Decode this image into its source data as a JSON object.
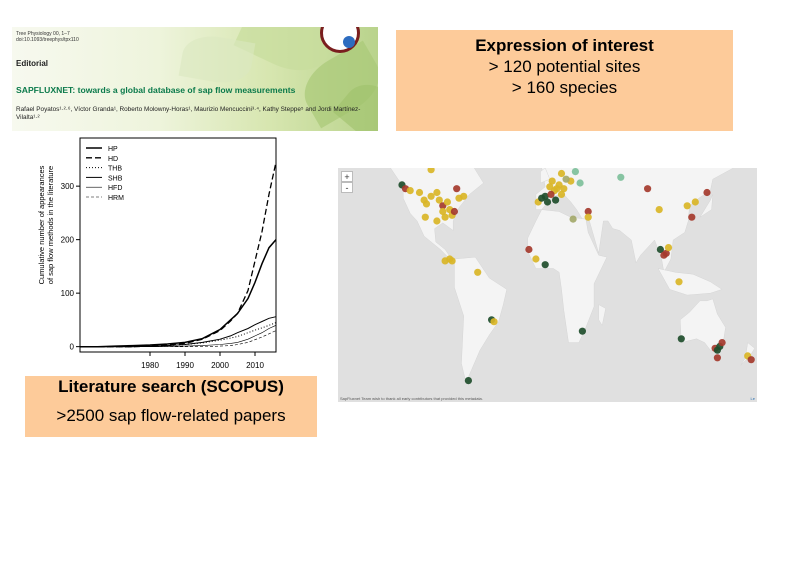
{
  "journal_header": {
    "meta_line1": "Tree Physiology 00, 1–7",
    "meta_line2": "doi:10.1093/treephys/tpx110",
    "kind": "Editorial",
    "title": "SAPFLUXNET: towards a global database of sap flow measurements",
    "authors": "Rafael Poyatos¹·²·⁶, Víctor Granda¹, Roberto Molowny-Horas¹, Maurizio Mencuccini³·⁴, Kathy Steppe⁵ and Jordi Martínez-Vilalta¹·²"
  },
  "expression_box": {
    "heading": "Expression of interest",
    "line1": "> 120 potential sites",
    "line2": "> 160 species"
  },
  "literature_box": {
    "heading": "Literature search (SCOPUS)",
    "line1": ">2500 sap flow-related papers"
  },
  "map": {
    "zoom_in": "+",
    "zoom_out": "-",
    "credit": "SapFluxnet Team wish to thank all early contributors that provided this metadata.",
    "leaflet_label": "Le",
    "colors": {
      "ocean": "#e0e0e0",
      "land": "#f4f4f4",
      "yellow": "#d9b526",
      "red": "#a43a2c",
      "dark_green": "#1e4d2b",
      "mint": "#7dbf9a",
      "olive": "#a3a86a"
    },
    "sites": [
      {
        "lon": -125,
        "lat": 49,
        "c": "dark_green"
      },
      {
        "lon": -122,
        "lat": 47,
        "c": "red"
      },
      {
        "lon": -118,
        "lat": 46,
        "c": "yellow"
      },
      {
        "lon": -110,
        "lat": 45,
        "c": "yellow"
      },
      {
        "lon": -106,
        "lat": 41,
        "c": "yellow"
      },
      {
        "lon": -104,
        "lat": 39,
        "c": "yellow"
      },
      {
        "lon": -100,
        "lat": 43,
        "c": "yellow"
      },
      {
        "lon": -95,
        "lat": 45,
        "c": "yellow"
      },
      {
        "lon": -93,
        "lat": 41,
        "c": "yellow"
      },
      {
        "lon": -90,
        "lat": 38,
        "c": "red"
      },
      {
        "lon": -86,
        "lat": 40,
        "c": "yellow"
      },
      {
        "lon": -84,
        "lat": 36,
        "c": "yellow"
      },
      {
        "lon": -82,
        "lat": 33,
        "c": "yellow"
      },
      {
        "lon": -80,
        "lat": 35,
        "c": "red"
      },
      {
        "lon": -76,
        "lat": 42,
        "c": "yellow"
      },
      {
        "lon": -72,
        "lat": 43,
        "c": "yellow"
      },
      {
        "lon": -95,
        "lat": 30,
        "c": "yellow"
      },
      {
        "lon": -88,
        "lat": 32,
        "c": "yellow"
      },
      {
        "lon": -105,
        "lat": 32,
        "c": "yellow"
      },
      {
        "lon": -90,
        "lat": 35,
        "c": "yellow"
      },
      {
        "lon": -78,
        "lat": 47,
        "c": "red"
      },
      {
        "lon": -100,
        "lat": 57,
        "c": "yellow"
      },
      {
        "lon": -88,
        "lat": 9,
        "c": "yellow"
      },
      {
        "lon": -84,
        "lat": 10,
        "c": "yellow"
      },
      {
        "lon": -82,
        "lat": 9,
        "c": "yellow"
      },
      {
        "lon": -60,
        "lat": 3,
        "c": "yellow"
      },
      {
        "lon": -48,
        "lat": -22,
        "c": "dark_green"
      },
      {
        "lon": -46,
        "lat": -23,
        "c": "yellow"
      },
      {
        "lon": -68,
        "lat": -54,
        "c": "dark_green"
      },
      {
        "lon": -8,
        "lat": 40,
        "c": "yellow"
      },
      {
        "lon": -5,
        "lat": 42,
        "c": "dark_green"
      },
      {
        "lon": -2,
        "lat": 43,
        "c": "dark_green"
      },
      {
        "lon": 0,
        "lat": 40,
        "c": "dark_green"
      },
      {
        "lon": 2,
        "lat": 48,
        "c": "yellow"
      },
      {
        "lon": 4,
        "lat": 51,
        "c": "yellow"
      },
      {
        "lon": 6,
        "lat": 46,
        "c": "yellow"
      },
      {
        "lon": 8,
        "lat": 47,
        "c": "yellow"
      },
      {
        "lon": 10,
        "lat": 49,
        "c": "yellow"
      },
      {
        "lon": 12,
        "lat": 44,
        "c": "yellow"
      },
      {
        "lon": 14,
        "lat": 47,
        "c": "yellow"
      },
      {
        "lon": 3,
        "lat": 44,
        "c": "red"
      },
      {
        "lon": 7,
        "lat": 41,
        "c": "dark_green"
      },
      {
        "lon": 18,
        "lat": 60,
        "c": "yellow"
      },
      {
        "lon": 22,
        "lat": 62,
        "c": "yellow"
      },
      {
        "lon": 26,
        "lat": 66,
        "c": "yellow"
      },
      {
        "lon": 24,
        "lat": 56,
        "c": "mint"
      },
      {
        "lon": 28,
        "lat": 50,
        "c": "mint"
      },
      {
        "lon": 20,
        "lat": 51,
        "c": "yellow"
      },
      {
        "lon": 16,
        "lat": 52,
        "c": "olive"
      },
      {
        "lon": 12,
        "lat": 55,
        "c": "yellow"
      },
      {
        "lon": 35,
        "lat": 35,
        "c": "red"
      },
      {
        "lon": 35,
        "lat": 32,
        "c": "yellow"
      },
      {
        "lon": 22,
        "lat": 31,
        "c": "olive"
      },
      {
        "lon": -16,
        "lat": 15,
        "c": "red"
      },
      {
        "lon": -10,
        "lat": 10,
        "c": "yellow"
      },
      {
        "lon": -2,
        "lat": 7,
        "c": "dark_green"
      },
      {
        "lon": 30,
        "lat": -28,
        "c": "dark_green"
      },
      {
        "lon": 63,
        "lat": 53,
        "c": "mint"
      },
      {
        "lon": 71,
        "lat": 64,
        "c": "mint"
      },
      {
        "lon": 86,
        "lat": 47,
        "c": "red"
      },
      {
        "lon": 96,
        "lat": 36,
        "c": "yellow"
      },
      {
        "lon": 97,
        "lat": 15,
        "c": "dark_green"
      },
      {
        "lon": 100,
        "lat": 12,
        "c": "red"
      },
      {
        "lon": 102,
        "lat": 13,
        "c": "red"
      },
      {
        "lon": 104,
        "lat": 16,
        "c": "yellow"
      },
      {
        "lon": 113,
        "lat": -2,
        "c": "yellow"
      },
      {
        "lon": 120,
        "lat": 38,
        "c": "yellow"
      },
      {
        "lon": 124,
        "lat": 32,
        "c": "red"
      },
      {
        "lon": 127,
        "lat": 40,
        "c": "yellow"
      },
      {
        "lon": 137,
        "lat": 45,
        "c": "red"
      },
      {
        "lon": 115,
        "lat": -32,
        "c": "dark_green"
      },
      {
        "lon": 144,
        "lat": -37,
        "c": "red"
      },
      {
        "lon": 146,
        "lat": -38,
        "c": "dark_green"
      },
      {
        "lon": 148,
        "lat": -36,
        "c": "dark_green"
      },
      {
        "lon": 150,
        "lat": -34,
        "c": "red"
      },
      {
        "lon": 146,
        "lat": -42,
        "c": "red"
      },
      {
        "lon": 172,
        "lat": -41,
        "c": "yellow"
      },
      {
        "lon": 175,
        "lat": -43,
        "c": "red"
      }
    ]
  },
  "chart_data": {
    "type": "line",
    "title": "",
    "xlabel": "",
    "ylabel": "Cumulative number of appearances of sap flow methods in the literature",
    "xlim": [
      1960,
      2016
    ],
    "ylim": [
      -10,
      390
    ],
    "xticks": [
      1980,
      1990,
      2000,
      2010
    ],
    "yticks": [
      0,
      100,
      200,
      300
    ],
    "legend_position": "top-left",
    "x": [
      1960,
      1965,
      1970,
      1975,
      1980,
      1985,
      1990,
      1995,
      2000,
      2003,
      2005,
      2008,
      2010,
      2012,
      2014,
      2016
    ],
    "series": [
      {
        "name": "HP",
        "style": "solid",
        "width": 1.5,
        "values": [
          0,
          0,
          1,
          2,
          3,
          5,
          8,
          15,
          32,
          50,
          62,
          90,
          120,
          155,
          185,
          200
        ]
      },
      {
        "name": "HD",
        "style": "dashed",
        "width": 1.3,
        "values": [
          0,
          0,
          0,
          0,
          1,
          3,
          6,
          14,
          30,
          48,
          62,
          105,
          160,
          215,
          285,
          345
        ]
      },
      {
        "name": "THB",
        "style": "dotted",
        "width": 1,
        "values": [
          0,
          0,
          0,
          0,
          1,
          2,
          4,
          7,
          12,
          16,
          19,
          26,
          31,
          35,
          40,
          45
        ]
      },
      {
        "name": "SHB",
        "style": "solid",
        "width": 1,
        "values": [
          0,
          0,
          0,
          0,
          1,
          2,
          4,
          8,
          14,
          20,
          26,
          34,
          41,
          47,
          53,
          56
        ]
      },
      {
        "name": "HFD",
        "style": "solid",
        "width": 0.6,
        "values": [
          0,
          0,
          0,
          0,
          0,
          0,
          1,
          2,
          4,
          6,
          8,
          14,
          20,
          26,
          34,
          40
        ]
      },
      {
        "name": "HRM",
        "style": "dashed-thin",
        "width": 0.6,
        "values": [
          0,
          0,
          0,
          0,
          0,
          0,
          0,
          0,
          1,
          2,
          4,
          8,
          13,
          18,
          24,
          30
        ]
      }
    ]
  }
}
